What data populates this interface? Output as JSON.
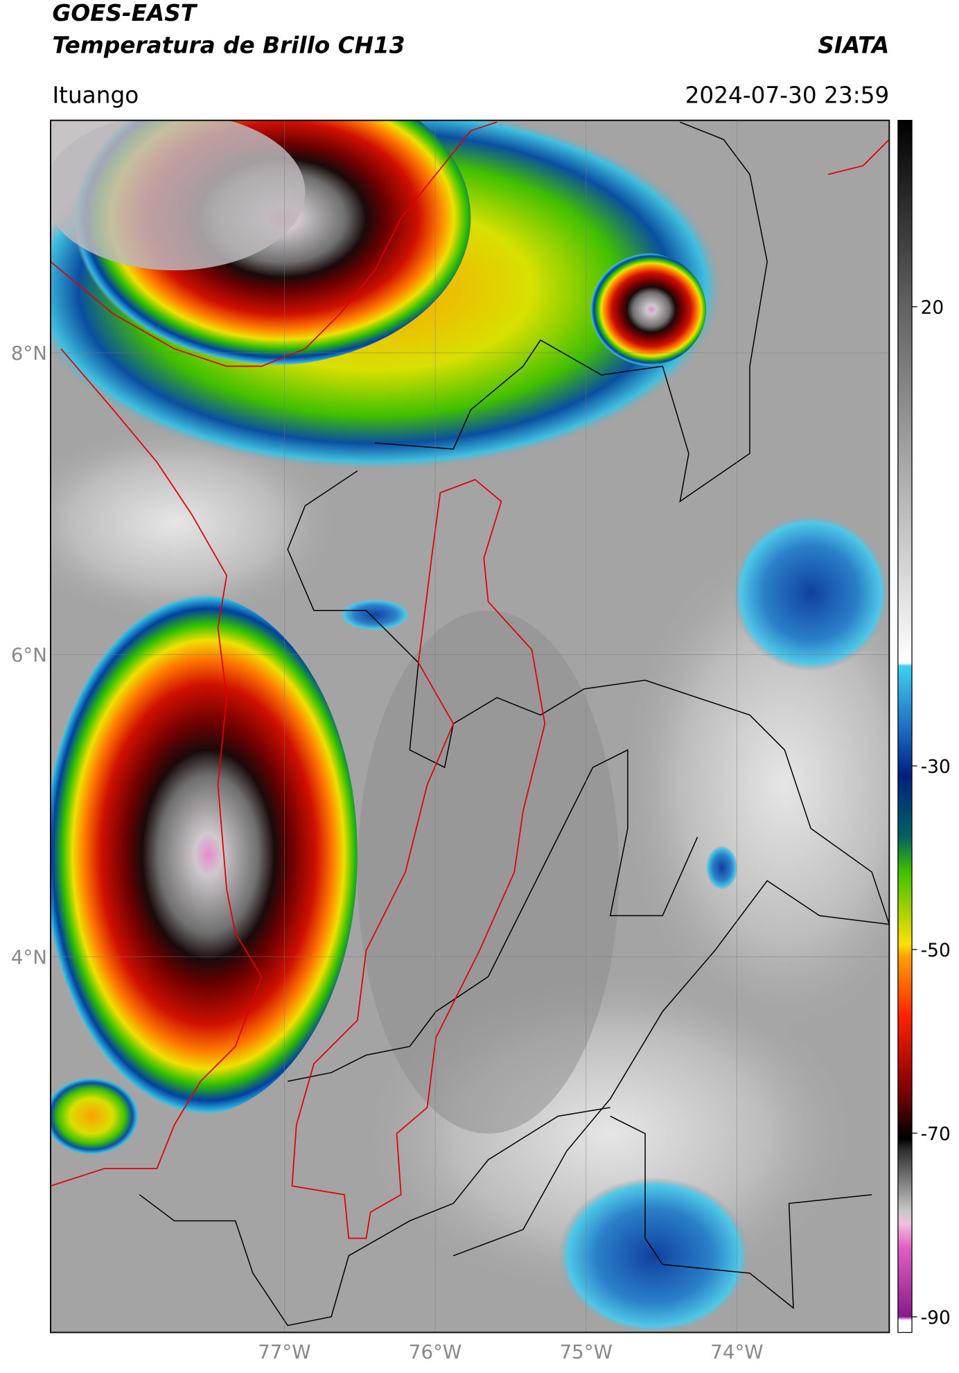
{
  "header": {
    "title": "GOES-EAST",
    "subtitle": "Temperatura de Brillo CH13",
    "agency": "SIATA",
    "location": "Ituango",
    "datetime": "2024-07-30 23:59"
  },
  "map": {
    "lon_range": [
      -78.55,
      -72.99
    ],
    "lat_range": [
      1.51,
      9.54
    ],
    "lon_ticks": [
      {
        "value": -77,
        "label": "77°W"
      },
      {
        "value": -76,
        "label": "76°W"
      },
      {
        "value": -75,
        "label": "75°W"
      },
      {
        "value": -74,
        "label": "74°W"
      }
    ],
    "lat_ticks": [
      {
        "value": 8,
        "label": "8°N"
      },
      {
        "value": 6,
        "label": "6°N"
      },
      {
        "value": 4,
        "label": "4°N"
      }
    ]
  },
  "colorbar": {
    "lim": [
      -91.7,
      40.3
    ],
    "ticks": [
      20,
      -30,
      -50,
      -70,
      -90
    ]
  }
}
